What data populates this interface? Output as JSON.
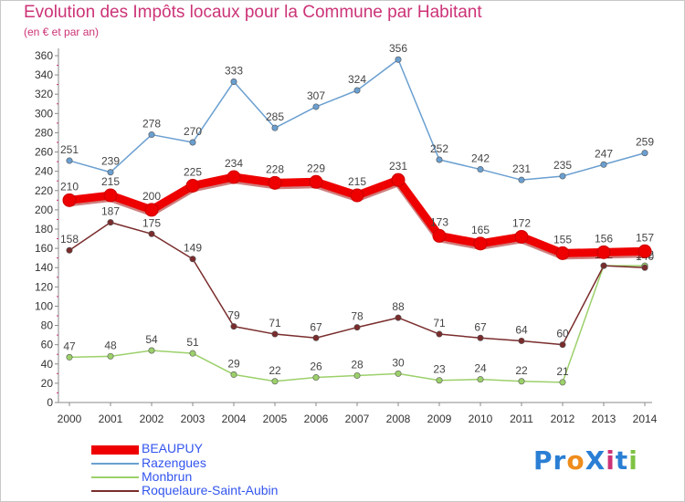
{
  "title": "Evolution des Impôts locaux pour la Commune par Habitant",
  "subtitle": "(en € et par an)",
  "logo": {
    "text": "ProXiti",
    "letters": [
      "P",
      "r",
      "o",
      "X",
      "i",
      "t",
      "i"
    ],
    "colors": [
      "#2a7fd4",
      "#2a7fd4",
      "#ee8c1c",
      "#2a7fd4",
      "#cc3377",
      "#2a7fd4",
      "#7fc244"
    ]
  },
  "chart_data": {
    "type": "line",
    "title": "Evolution des Impôts locaux pour la Commune par Habitant",
    "subtitle": "(en € et par an)",
    "x": [
      "2000",
      "2001",
      "2002",
      "2003",
      "2004",
      "2005",
      "2006",
      "2007",
      "2008",
      "2009",
      "2010",
      "2011",
      "2012",
      "2013",
      "2014"
    ],
    "ylim": [
      0,
      360
    ],
    "yticks": [
      0,
      20,
      40,
      60,
      80,
      100,
      120,
      140,
      160,
      180,
      200,
      220,
      240,
      260,
      280,
      300,
      320,
      340,
      360
    ],
    "grid": false,
    "legend_position": "bottom-left",
    "series": [
      {
        "name": "Razengues",
        "color": "#6a9fd0",
        "values": [
          251,
          239,
          278,
          270,
          333,
          285,
          307,
          324,
          356,
          252,
          242,
          231,
          235,
          247,
          259
        ],
        "labels": [
          "251",
          "239",
          "278",
          "270",
          "333",
          "285",
          "307",
          "324",
          "356",
          "252",
          "242",
          "231",
          "235",
          "247",
          "259"
        ]
      },
      {
        "name": "Monbrun",
        "color": "#9cd06a",
        "values": [
          47,
          48,
          54,
          51,
          29,
          22,
          26,
          28,
          30,
          23,
          24,
          22,
          21,
          142,
          142
        ],
        "labels": [
          "47",
          "48",
          "54",
          "51",
          "29",
          "22",
          "26",
          "28",
          "30",
          "23",
          "24",
          "22",
          "21",
          "142",
          "142"
        ]
      },
      {
        "name": "Roquelaure-Saint-Aubin",
        "color": "#7a2c2c",
        "values": [
          158,
          187,
          175,
          149,
          79,
          71,
          67,
          78,
          88,
          71,
          67,
          64,
          60,
          142,
          140
        ],
        "labels": [
          "158",
          "187",
          "175",
          "149",
          "79",
          "71",
          "67",
          "78",
          "88",
          "71",
          "67",
          "64",
          "60",
          "142",
          "140"
        ]
      },
      {
        "name": "BEAUPUY",
        "color": "#ee0000",
        "values": [
          210,
          215,
          200,
          225,
          234,
          228,
          229,
          215,
          231,
          173,
          165,
          172,
          155,
          156,
          157
        ],
        "labels": [
          "210",
          "215",
          "200",
          "225",
          "234",
          "228",
          "229",
          "215",
          "231",
          "173",
          "165",
          "172",
          "155",
          "156",
          "157"
        ]
      }
    ],
    "legend": [
      "BEAUPUY",
      "Razengues",
      "Monbrun",
      "Roquelaure-Saint-Aubin"
    ]
  }
}
